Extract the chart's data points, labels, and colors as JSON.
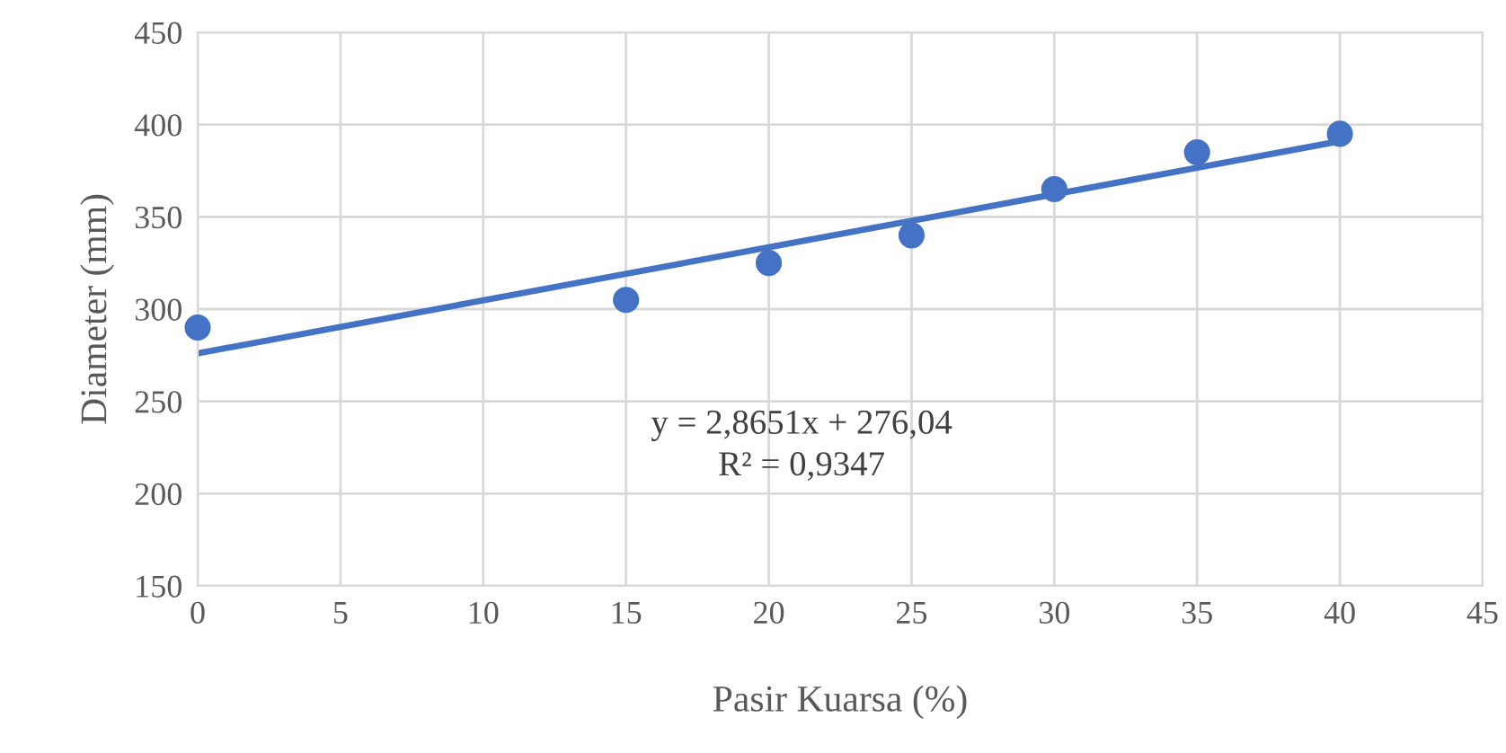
{
  "chart_data": {
    "type": "scatter",
    "xlabel": "Pasir Kuarsa (%)",
    "ylabel": "Diameter (mm)",
    "xlim": [
      0,
      45
    ],
    "xticks": [
      0,
      5,
      10,
      15,
      20,
      25,
      30,
      35,
      40,
      45
    ],
    "ylim": [
      150,
      450
    ],
    "yticks": [
      150,
      200,
      250,
      300,
      350,
      400,
      450
    ],
    "grid": true,
    "legend": false,
    "series": [
      {
        "color": "#4472c4",
        "marker": "circle",
        "x": [
          0,
          15,
          20,
          25,
          30,
          35,
          40
        ],
        "values": [
          290,
          305,
          325,
          340,
          365,
          385,
          395
        ]
      },
      {
        "type": "line",
        "color": "#4472c4",
        "line_style": "solid",
        "x": [
          0,
          40
        ],
        "values": [
          276,
          391
        ]
      }
    ],
    "annotations": [
      "y = 2,8651x + 276,04",
      "R² = 0,9347"
    ]
  }
}
